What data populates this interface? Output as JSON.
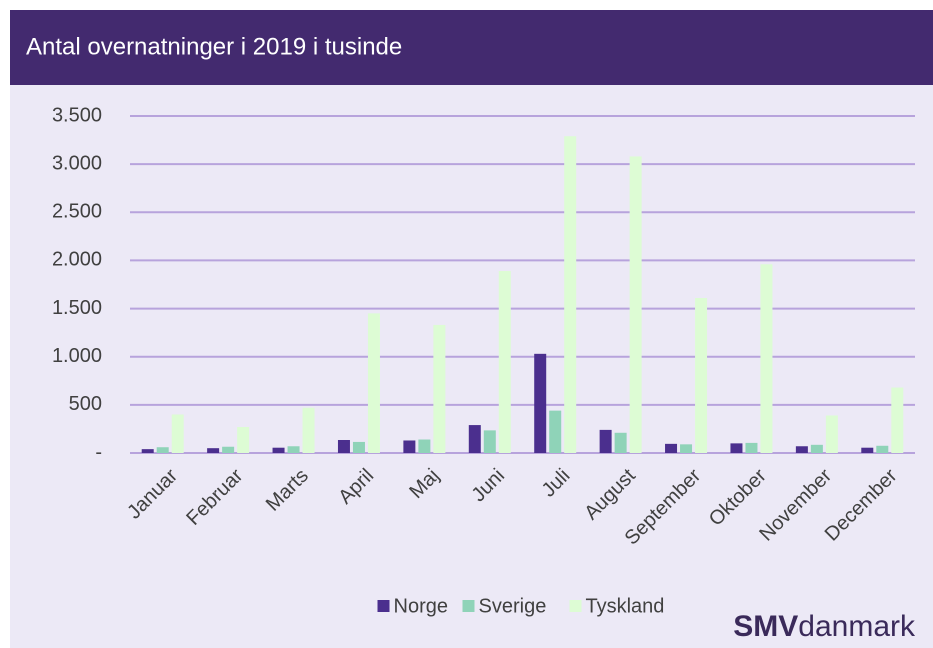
{
  "chart_data": {
    "type": "bar",
    "title": "Antal overnatninger i 2019 i tusinde",
    "categories": [
      "Januar",
      "Februar",
      "Marts",
      "April",
      "Maj",
      "Juni",
      "Juli",
      "August",
      "September",
      "Oktober",
      "November",
      "December"
    ],
    "series": [
      {
        "name": "Norge",
        "color": "#4b2f8e",
        "values": [
          40,
          50,
          55,
          135,
          130,
          290,
          1030,
          240,
          95,
          100,
          70,
          55
        ]
      },
      {
        "name": "Sverige",
        "color": "#8fd3b8",
        "values": [
          60,
          65,
          70,
          115,
          140,
          235,
          440,
          210,
          90,
          105,
          85,
          75
        ]
      },
      {
        "name": "Tyskland",
        "color": "#ddfcd4",
        "values": [
          400,
          270,
          470,
          1450,
          1330,
          1890,
          3290,
          3080,
          1610,
          1960,
          390,
          680
        ]
      }
    ],
    "ylim": [
      0,
      3500
    ],
    "yticks": [
      {
        "value": 0,
        "label": "-"
      },
      500,
      {
        "value": 1000,
        "label": "1.000"
      },
      {
        "value": 1500,
        "label": "1.500"
      },
      {
        "value": 2000,
        "label": "2.000"
      },
      {
        "value": 2500,
        "label": "2.500"
      },
      {
        "value": 3000,
        "label": "3.000"
      },
      {
        "value": 3500,
        "label": "3.500"
      }
    ],
    "grid": true,
    "legend": "bottom",
    "logo": {
      "bold": "SMV",
      "rest": "danmark"
    }
  }
}
